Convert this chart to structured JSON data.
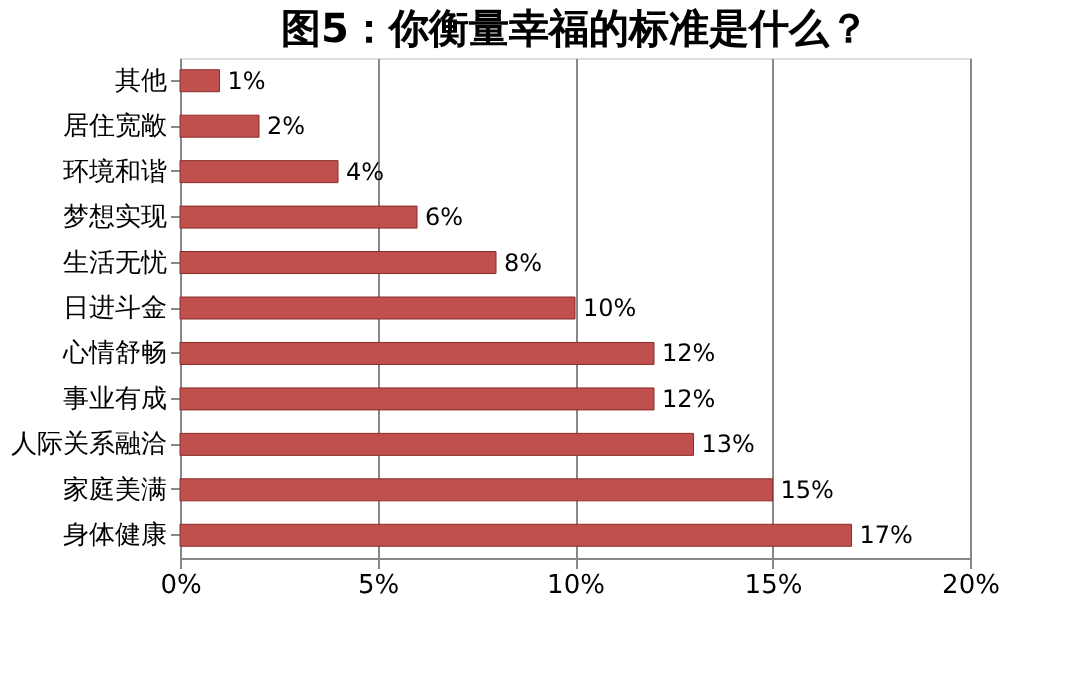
{
  "chart_data": {
    "type": "bar",
    "orientation": "horizontal",
    "title": "图5：你衡量幸福的标准是什么？",
    "categories": [
      "其他",
      "居住宽敞",
      "环境和谐",
      "梦想实现",
      "生活无忧",
      "日进斗金",
      "心情舒畅",
      "事业有成",
      "人际关系融洽",
      "家庭美满",
      "身体健康"
    ],
    "values": [
      1,
      2,
      4,
      6,
      8,
      10,
      12,
      12,
      13,
      15,
      17
    ],
    "value_labels": [
      "1%",
      "2%",
      "4%",
      "6%",
      "8%",
      "10%",
      "12%",
      "12%",
      "13%",
      "15%",
      "17%"
    ],
    "color": "#c0504d",
    "xlim": [
      0,
      20
    ],
    "xticks": [
      {
        "value": 0,
        "label": "0%"
      },
      {
        "value": 5,
        "label": "5%"
      },
      {
        "value": 10,
        "label": "10%"
      },
      {
        "value": 15,
        "label": "15%"
      },
      {
        "value": 20,
        "label": "20%"
      }
    ],
    "grid": "x"
  }
}
